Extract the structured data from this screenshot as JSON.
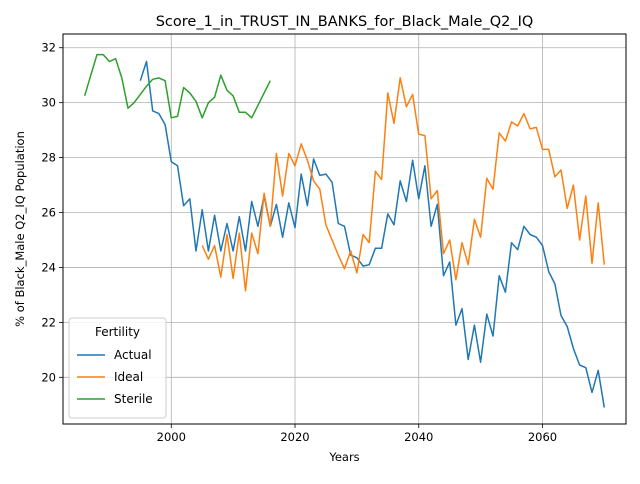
{
  "chart_data": {
    "type": "line",
    "title": "Score_1_in_TRUST_IN_BANKS_for_Black_Male_Q2_IQ",
    "xlabel": "Years",
    "ylabel": "% of Black_Male Q2_IQ Population",
    "xlim": [
      1982.5,
      2073.5
    ],
    "ylim": [
      18.3,
      32.5
    ],
    "xticks": [
      2000,
      2020,
      2040,
      2060
    ],
    "yticks": [
      20,
      22,
      24,
      26,
      28,
      30,
      32
    ],
    "grid": true,
    "legend": {
      "title": "Fertility",
      "placement": "lower-left"
    },
    "series": [
      {
        "name": "Actual",
        "color": "#1f77b4",
        "x": [
          1995,
          1996,
          1997,
          1998,
          1999,
          2000,
          2001,
          2002,
          2003,
          2004,
          2005,
          2006,
          2007,
          2008,
          2009,
          2010,
          2011,
          2012,
          2013,
          2014,
          2015,
          2016,
          2017,
          2018,
          2019,
          2020,
          2021,
          2022,
          2023,
          2024,
          2025,
          2026,
          2027,
          2028,
          2029,
          2030,
          2031,
          2032,
          2033,
          2034,
          2035,
          2036,
          2037,
          2038,
          2039,
          2040,
          2041,
          2042,
          2043,
          2044,
          2045,
          2046,
          2047,
          2048,
          2049,
          2050,
          2051,
          2052,
          2053,
          2054,
          2055,
          2056,
          2057,
          2058,
          2059,
          2060,
          2061,
          2062,
          2063,
          2064,
          2065,
          2066,
          2067,
          2068,
          2069,
          2070
        ],
        "y": [
          30.8,
          31.5,
          29.7,
          29.6,
          29.2,
          27.85,
          27.7,
          26.25,
          26.5,
          24.6,
          26.1,
          24.6,
          25.9,
          24.6,
          25.6,
          24.6,
          25.85,
          24.6,
          26.4,
          25.5,
          26.6,
          25.5,
          26.3,
          25.1,
          26.35,
          25.45,
          27.4,
          26.25,
          27.95,
          27.35,
          27.4,
          27.1,
          25.6,
          25.5,
          24.45,
          24.35,
          24.05,
          24.1,
          24.7,
          24.7,
          25.95,
          25.55,
          27.15,
          26.4,
          27.9,
          26.5,
          27.7,
          25.5,
          26.3,
          23.7,
          24.2,
          21.9,
          22.5,
          20.65,
          21.9,
          20.55,
          22.3,
          21.5,
          23.7,
          23.1,
          24.9,
          24.65,
          25.5,
          25.2,
          25.1,
          24.8,
          23.85,
          23.4,
          22.25,
          21.85,
          21.05,
          20.45,
          20.35,
          19.45,
          20.25,
          18.9
        ]
      },
      {
        "name": "Ideal",
        "color": "#ff7f0e",
        "x": [
          2005,
          2006,
          2007,
          2008,
          2009,
          2010,
          2011,
          2012,
          2013,
          2014,
          2015,
          2016,
          2017,
          2018,
          2019,
          2020,
          2021,
          2022,
          2023,
          2024,
          2025,
          2026,
          2027,
          2028,
          2029,
          2030,
          2031,
          2032,
          2033,
          2034,
          2035,
          2036,
          2037,
          2038,
          2039,
          2040,
          2041,
          2042,
          2043,
          2044,
          2045,
          2046,
          2047,
          2048,
          2049,
          2050,
          2051,
          2052,
          2053,
          2054,
          2055,
          2056,
          2057,
          2058,
          2059,
          2060,
          2061,
          2062,
          2063,
          2064,
          2065,
          2066,
          2067,
          2068,
          2069,
          2070
        ],
        "y": [
          24.8,
          24.3,
          24.8,
          23.65,
          25.2,
          23.6,
          25.25,
          23.15,
          25.25,
          24.5,
          26.7,
          25.5,
          28.15,
          26.6,
          28.15,
          27.7,
          28.5,
          27.9,
          27.15,
          26.85,
          25.55,
          25.0,
          24.45,
          23.95,
          24.6,
          23.8,
          25.2,
          24.9,
          27.5,
          27.2,
          30.35,
          29.25,
          30.9,
          29.85,
          30.3,
          28.85,
          28.8,
          26.5,
          26.8,
          24.5,
          25.0,
          23.55,
          24.9,
          24.1,
          25.75,
          25.1,
          27.25,
          26.85,
          28.9,
          28.6,
          29.3,
          29.15,
          29.6,
          29.05,
          29.1,
          28.3,
          28.3,
          27.3,
          27.55,
          26.15,
          27.0,
          25.0,
          26.6,
          24.15,
          26.35,
          24.1
        ]
      },
      {
        "name": "Sterile",
        "color": "#2ca02c",
        "x": [
          1986,
          1987,
          1988,
          1989,
          1990,
          1991,
          1992,
          1993,
          1994,
          1995,
          1996,
          1997,
          1998,
          1999,
          2000,
          2001,
          2002,
          2003,
          2004,
          2005,
          2006,
          2007,
          2008,
          2009,
          2010,
          2011,
          2012,
          2013,
          2014,
          2015,
          2016
        ],
        "y": [
          30.25,
          31.0,
          31.75,
          31.75,
          31.5,
          31.6,
          30.9,
          29.8,
          30.0,
          30.3,
          30.6,
          30.85,
          30.9,
          30.8,
          29.45,
          29.5,
          30.55,
          30.35,
          30.05,
          29.45,
          30.0,
          30.2,
          31.0,
          30.45,
          30.25,
          29.65,
          29.65,
          29.45,
          29.9,
          30.35,
          30.8
        ]
      }
    ]
  }
}
